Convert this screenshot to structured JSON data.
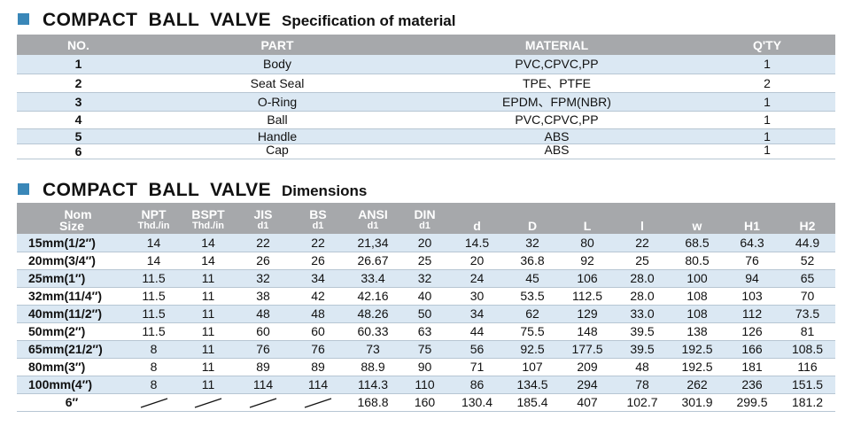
{
  "material_section": {
    "title": "COMPACT BALL VALVE",
    "subtitle": "Specification of material",
    "headers": [
      "NO.",
      "PART",
      "MATERIAL",
      "Q'TY"
    ],
    "rows": [
      {
        "no": "1",
        "part": "Body",
        "material": "PVC,CPVC,PP",
        "qty": "1"
      },
      {
        "no": "2",
        "part": "Seat  Seal",
        "material": "TPE、PTFE",
        "qty": "2"
      },
      {
        "no": "3",
        "part": "O-Ring",
        "material": "EPDM、FPM(NBR)",
        "qty": "1"
      },
      {
        "no": "4",
        "part": "Ball",
        "material": "PVC,CPVC,PP",
        "qty": "1"
      },
      {
        "no": "5",
        "part": "Handle",
        "material": "ABS",
        "qty": "1"
      },
      {
        "no": "6",
        "part": "Cap",
        "material": "ABS",
        "qty": "1"
      }
    ]
  },
  "dimension_section": {
    "title": "COMPACT BALL VALVE",
    "subtitle": "Dimensions",
    "headers": [
      {
        "top": "Nom",
        "bottom": "Size"
      },
      {
        "top": "NPT",
        "bottom": "Thd./in"
      },
      {
        "top": "BSPT",
        "bottom": "Thd./in"
      },
      {
        "top": "JIS",
        "bottom": "d1"
      },
      {
        "top": "BS",
        "bottom": "d1"
      },
      {
        "top": "ANSI",
        "bottom": "d1"
      },
      {
        "top": "DIN",
        "bottom": "d1"
      },
      {
        "top": "",
        "bottom": "d"
      },
      {
        "top": "",
        "bottom": "D"
      },
      {
        "top": "",
        "bottom": "L"
      },
      {
        "top": "",
        "bottom": "l"
      },
      {
        "top": "",
        "bottom": "w"
      },
      {
        "top": "",
        "bottom": "H1"
      },
      {
        "top": "",
        "bottom": "H2"
      }
    ],
    "rows": [
      [
        "15mm(1/2″)",
        "14",
        "14",
        "22",
        "22",
        "21,34",
        "20",
        "14.5",
        "32",
        "80",
        "22",
        "68.5",
        "64.3",
        "44.9"
      ],
      [
        "20mm(3/4″)",
        "14",
        "14",
        "26",
        "26",
        "26.67",
        "25",
        "20",
        "36.8",
        "92",
        "25",
        "80.5",
        "76",
        "52"
      ],
      [
        "25mm(1″)",
        "11.5",
        "11",
        "32",
        "34",
        "33.4",
        "32",
        "24",
        "45",
        "106",
        "28.0",
        "100",
        "94",
        "65"
      ],
      [
        "32mm(11/4″)",
        "11.5",
        "11",
        "38",
        "42",
        "42.16",
        "40",
        "30",
        "53.5",
        "112.5",
        "28.0",
        "108",
        "103",
        "70"
      ],
      [
        "40mm(11/2″)",
        "11.5",
        "11",
        "48",
        "48",
        "48.26",
        "50",
        "34",
        "62",
        "129",
        "33.0",
        "108",
        "112",
        "73.5"
      ],
      [
        "50mm(2″)",
        "11.5",
        "11",
        "60",
        "60",
        "60.33",
        "63",
        "44",
        "75.5",
        "148",
        "39.5",
        "138",
        "126",
        "81"
      ],
      [
        "65mm(21/2″)",
        "8",
        "11",
        "76",
        "76",
        "73",
        "75",
        "56",
        "92.5",
        "177.5",
        "39.5",
        "192.5",
        "166",
        "108.5"
      ],
      [
        "80mm(3″)",
        "8",
        "11",
        "89",
        "89",
        "88.9",
        "90",
        "71",
        "107",
        "209",
        "48",
        "192.5",
        "181",
        "116"
      ],
      [
        "100mm(4″)",
        "8",
        "11",
        "114",
        "114",
        "114.3",
        "110",
        "86",
        "134.5",
        "294",
        "78",
        "262",
        "236",
        "151.5"
      ],
      [
        "6″",
        "/",
        "/",
        "/",
        "/",
        "168.8",
        "160",
        "130.4",
        "185.4",
        "407",
        "102.7",
        "301.9",
        "299.5",
        "181.2"
      ]
    ]
  },
  "colors": {
    "accent_square": "#3a87b8",
    "header_bg": "#a6a8ab",
    "stripe_bg": "#dbe8f3"
  }
}
